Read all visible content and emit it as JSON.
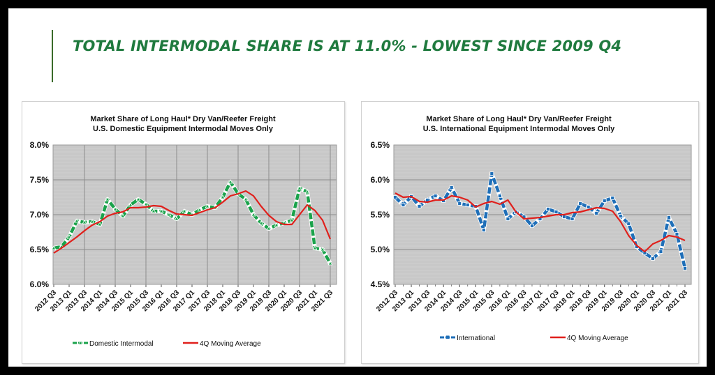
{
  "headline": "TOTAL INTERMODAL SHARE IS AT 11.0% - LOWEST SINCE 2009 Q4",
  "colors": {
    "headline": "#1f7a3e",
    "plot_bg": "#c8c8c8",
    "domestic": "#1aa24b",
    "international": "#1f6fb8",
    "moving_average": "#e0201c"
  },
  "chart_data": [
    {
      "type": "line",
      "title": "Market Share of Long Haul* Dry Van/Reefer Freight",
      "subtitle": "U.S. Domestic Equipment Intermodal Moves Only",
      "xlabel": "",
      "ylabel": "",
      "ylim": [
        6.0,
        8.0
      ],
      "yticks": [
        "6.0%",
        "6.5%",
        "7.0%",
        "7.5%",
        "8.0%"
      ],
      "ytick_values": [
        6.0,
        6.5,
        7.0,
        7.5,
        8.0
      ],
      "tick_labels": [
        "2012 Q3",
        "2013 Q1",
        "2013 Q3",
        "2014 Q1",
        "2014 Q3",
        "2015 Q1",
        "2015 Q3",
        "2016 Q1",
        "2016 Q3",
        "2017 Q1",
        "2017 Q3",
        "2018 Q1",
        "2018 Q3",
        "2019 Q1",
        "2019 Q3",
        "2020 Q1",
        "2020 Q3",
        "2021 Q1",
        "2021 Q3"
      ],
      "grid": true,
      "legend_position": "bottom",
      "series": [
        {
          "name": "Domestic Intermodal",
          "color": "#1aa24b",
          "marker": "triangle",
          "dashed": true,
          "values": [
            6.52,
            6.54,
            6.68,
            6.91,
            6.89,
            6.9,
            6.86,
            7.22,
            7.08,
            6.98,
            7.14,
            7.22,
            7.15,
            7.05,
            7.05,
            7.0,
            6.94,
            7.05,
            7.0,
            7.07,
            7.12,
            7.1,
            7.25,
            7.47,
            7.3,
            7.22,
            7.0,
            6.88,
            6.8,
            6.85,
            6.88,
            6.92,
            7.38,
            7.33,
            6.52,
            6.5,
            6.3
          ]
        },
        {
          "name": "4Q Moving Average",
          "color": "#e0201c",
          "marker": "none",
          "dashed": false,
          "values": [
            6.45,
            6.52,
            6.6,
            6.68,
            6.77,
            6.85,
            6.9,
            6.98,
            7.02,
            7.04,
            7.1,
            7.1,
            7.11,
            7.13,
            7.12,
            7.06,
            7.01,
            7.0,
            6.99,
            7.03,
            7.07,
            7.1,
            7.18,
            7.27,
            7.3,
            7.34,
            7.27,
            7.12,
            6.99,
            6.9,
            6.86,
            6.86,
            7.0,
            7.14,
            7.06,
            6.92,
            6.65
          ]
        }
      ]
    },
    {
      "type": "line",
      "title": "Market Share of Long Haul* Dry Van/Reefer Freight",
      "subtitle": "U.S. International Equipment Intermodal Moves Only",
      "xlabel": "",
      "ylabel": "",
      "ylim": [
        4.5,
        6.5
      ],
      "yticks": [
        "4.5%",
        "5.0%",
        "5.5%",
        "6.0%",
        "6.5%"
      ],
      "ytick_values": [
        4.5,
        5.0,
        5.5,
        6.0,
        6.5
      ],
      "tick_labels": [
        "2012 Q3",
        "2013 Q1",
        "2013 Q3",
        "2014 Q1",
        "2014 Q3",
        "2015 Q1",
        "2015 Q3",
        "2016 Q1",
        "2016 Q3",
        "2017 Q1",
        "2017 Q3",
        "2018 Q1",
        "2018 Q3",
        "2019 Q1",
        "2019 Q3",
        "2020 Q1",
        "2020 Q3",
        "2021 Q1",
        "2021 Q3"
      ],
      "grid": true,
      "legend_position": "bottom",
      "series": [
        {
          "name": "International",
          "color": "#1f6fb8",
          "marker": "square",
          "dashed": true,
          "values": [
            5.75,
            5.64,
            5.76,
            5.62,
            5.71,
            5.77,
            5.7,
            5.89,
            5.66,
            5.64,
            5.62,
            5.28,
            6.09,
            5.77,
            5.44,
            5.54,
            5.47,
            5.34,
            5.44,
            5.58,
            5.54,
            5.47,
            5.44,
            5.66,
            5.61,
            5.52,
            5.7,
            5.74,
            5.48,
            5.37,
            5.04,
            4.95,
            4.87,
            4.97,
            5.46,
            5.22,
            4.73
          ]
        },
        {
          "name": "4Q Moving Average",
          "color": "#e0201c",
          "marker": "none",
          "dashed": false,
          "values": [
            5.81,
            5.75,
            5.76,
            5.69,
            5.68,
            5.71,
            5.71,
            5.77,
            5.75,
            5.71,
            5.61,
            5.66,
            5.69,
            5.65,
            5.71,
            5.54,
            5.44,
            5.45,
            5.46,
            5.48,
            5.5,
            5.5,
            5.53,
            5.54,
            5.57,
            5.6,
            5.59,
            5.55,
            5.4,
            5.2,
            5.06,
            4.97,
            5.08,
            5.13,
            5.2,
            5.18,
            5.13
          ]
        }
      ]
    }
  ]
}
